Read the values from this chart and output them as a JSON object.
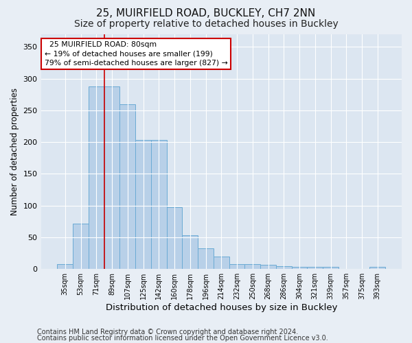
{
  "title1": "25, MUIRFIELD ROAD, BUCKLEY, CH7 2NN",
  "title2": "Size of property relative to detached houses in Buckley",
  "xlabel": "Distribution of detached houses by size in Buckley",
  "ylabel": "Number of detached properties",
  "footnote1": "Contains HM Land Registry data © Crown copyright and database right 2024.",
  "footnote2": "Contains public sector information licensed under the Open Government Licence v3.0.",
  "bar_labels": [
    "35sqm",
    "53sqm",
    "71sqm",
    "89sqm",
    "107sqm",
    "125sqm",
    "142sqm",
    "160sqm",
    "178sqm",
    "196sqm",
    "214sqm",
    "232sqm",
    "250sqm",
    "268sqm",
    "286sqm",
    "304sqm",
    "321sqm",
    "339sqm",
    "357sqm",
    "375sqm",
    "393sqm"
  ],
  "bar_values": [
    8,
    72,
    288,
    288,
    260,
    203,
    203,
    97,
    53,
    33,
    20,
    8,
    8,
    7,
    5,
    3,
    3,
    3,
    0,
    0,
    3
  ],
  "bar_color": "#b8d0e8",
  "bar_edge_color": "#6aaad4",
  "annotation_text": "  25 MUIRFIELD ROAD: 80sqm\n← 19% of detached houses are smaller (199)\n79% of semi-detached houses are larger (827) →",
  "annotation_box_color": "#ffffff",
  "annotation_border_color": "#cc0000",
  "vline_x": 2.5,
  "vline_color": "#cc0000",
  "ylim": [
    0,
    370
  ],
  "yticks": [
    0,
    50,
    100,
    150,
    200,
    250,
    300,
    350
  ],
  "bg_color": "#e8eef5",
  "plot_bg_color": "#dce6f1",
  "grid_color": "#ffffff",
  "title1_fontsize": 11,
  "title2_fontsize": 10,
  "xlabel_fontsize": 9.5,
  "ylabel_fontsize": 8.5,
  "footnote_fontsize": 7
}
